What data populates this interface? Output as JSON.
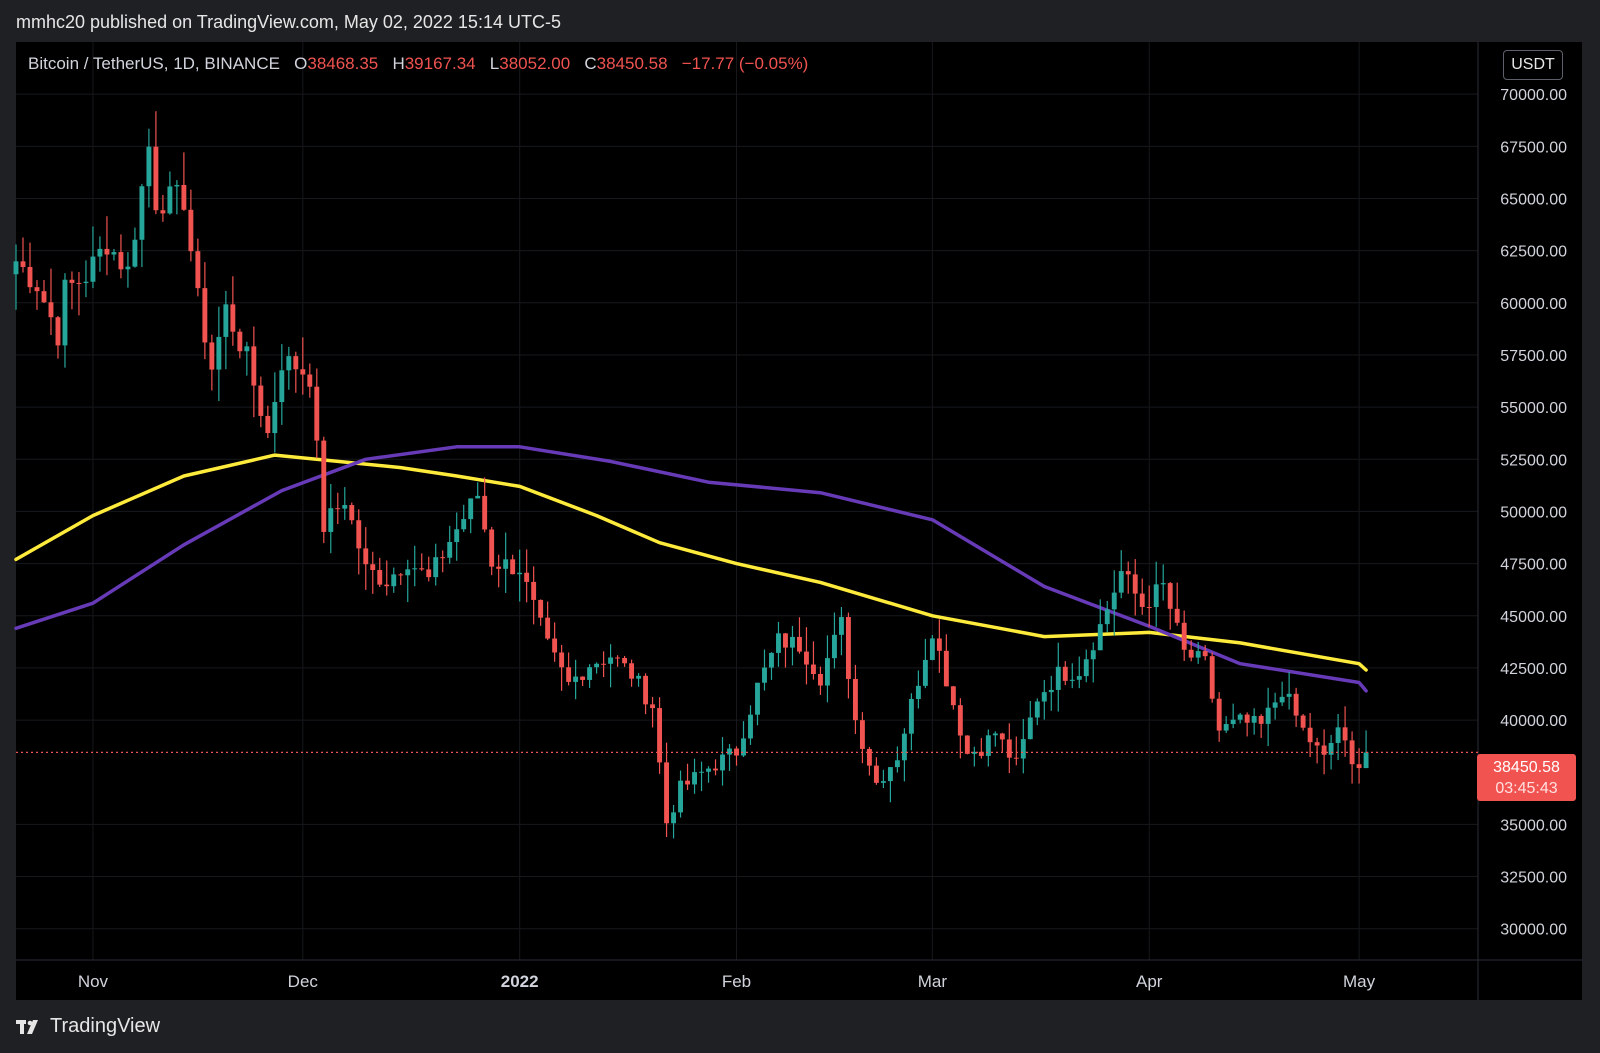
{
  "header": {
    "published_text": "mmhc20 published on TradingView.com, May 02, 2022 15:14 UTC-5"
  },
  "legend": {
    "symbol": "Bitcoin / TetherUS, 1D, BINANCE",
    "open_label": "O",
    "open": "38468.35",
    "high_label": "H",
    "high": "39167.34",
    "low_label": "L",
    "low": "38052.00",
    "close_label": "C",
    "close": "38450.58",
    "change": "−17.77 (−0.05%)"
  },
  "price_axis": {
    "currency": "USDT",
    "last_price": "38450.58",
    "countdown": "03:45:43",
    "ticks": [
      "70000.00",
      "67500.00",
      "65000.00",
      "62500.00",
      "60000.00",
      "57500.00",
      "55000.00",
      "52500.00",
      "50000.00",
      "47500.00",
      "45000.00",
      "42500.00",
      "40000.00",
      "35000.00",
      "32500.00",
      "30000.00"
    ]
  },
  "footer": {
    "brand": "TradingView"
  },
  "colors": {
    "up": "#26a69a",
    "down": "#f05350",
    "ma_yellow": "#ffeb3b",
    "ma_purple": "#673ab7",
    "background": "#000000"
  },
  "chart_data": {
    "type": "candlestick",
    "title": "Bitcoin / TetherUS, 1D, BINANCE",
    "x_ticks": [
      {
        "label": "Nov",
        "date": "2021-11-01"
      },
      {
        "label": "Dec",
        "date": "2021-12-01"
      },
      {
        "label": "2022",
        "date": "2022-01-01"
      },
      {
        "label": "Feb",
        "date": "2022-02-01"
      },
      {
        "label": "Mar",
        "date": "2022-03-01"
      },
      {
        "label": "Apr",
        "date": "2022-04-01"
      },
      {
        "label": "May",
        "date": "2022-05-01"
      }
    ],
    "x_range": [
      "2021-10-21",
      "2022-05-18"
    ],
    "ylim": [
      28500,
      72500
    ],
    "last_price": 38450.58,
    "close_series": [
      {
        "date": "2021-10-21",
        "close": 62000
      },
      {
        "date": "2021-10-24",
        "close": 60900
      },
      {
        "date": "2021-10-27",
        "close": 58500
      },
      {
        "date": "2021-10-28",
        "close": 60600
      },
      {
        "date": "2021-10-31",
        "close": 61300
      },
      {
        "date": "2021-11-03",
        "close": 62900
      },
      {
        "date": "2021-11-06",
        "close": 61500
      },
      {
        "date": "2021-11-09",
        "close": 67500
      },
      {
        "date": "2021-11-10",
        "close": 64900
      },
      {
        "date": "2021-11-14",
        "close": 65000
      },
      {
        "date": "2021-11-16",
        "close": 60100
      },
      {
        "date": "2021-11-18",
        "close": 56900
      },
      {
        "date": "2021-11-20",
        "close": 59700
      },
      {
        "date": "2021-11-23",
        "close": 57300
      },
      {
        "date": "2021-11-26",
        "close": 53700
      },
      {
        "date": "2021-11-28",
        "close": 57200
      },
      {
        "date": "2021-11-30",
        "close": 57000
      },
      {
        "date": "2021-12-02",
        "close": 56500
      },
      {
        "date": "2021-12-04",
        "close": 49300
      },
      {
        "date": "2021-12-07",
        "close": 50600
      },
      {
        "date": "2021-12-10",
        "close": 47200
      },
      {
        "date": "2021-12-13",
        "close": 46700
      },
      {
        "date": "2021-12-16",
        "close": 47700
      },
      {
        "date": "2021-12-19",
        "close": 46700
      },
      {
        "date": "2021-12-22",
        "close": 48600
      },
      {
        "date": "2021-12-26",
        "close": 50800
      },
      {
        "date": "2021-12-28",
        "close": 47600
      },
      {
        "date": "2022-01-01",
        "close": 47300
      },
      {
        "date": "2022-01-05",
        "close": 43500
      },
      {
        "date": "2022-01-08",
        "close": 41700
      },
      {
        "date": "2022-01-11",
        "close": 42700
      },
      {
        "date": "2022-01-14",
        "close": 43100
      },
      {
        "date": "2022-01-17",
        "close": 42200
      },
      {
        "date": "2022-01-20",
        "close": 40700
      },
      {
        "date": "2022-01-22",
        "close": 35100
      },
      {
        "date": "2022-01-24",
        "close": 36700
      },
      {
        "date": "2022-01-28",
        "close": 37700
      },
      {
        "date": "2022-02-01",
        "close": 38500
      },
      {
        "date": "2022-02-04",
        "close": 41600
      },
      {
        "date": "2022-02-07",
        "close": 43800
      },
      {
        "date": "2022-02-10",
        "close": 43600
      },
      {
        "date": "2022-02-13",
        "close": 42100
      },
      {
        "date": "2022-02-16",
        "close": 44600
      },
      {
        "date": "2022-02-18",
        "close": 40000
      },
      {
        "date": "2022-02-21",
        "close": 37000
      },
      {
        "date": "2022-02-24",
        "close": 38300
      },
      {
        "date": "2022-02-28",
        "close": 43200
      },
      {
        "date": "2022-03-01",
        "close": 44400
      },
      {
        "date": "2022-03-03",
        "close": 42000
      },
      {
        "date": "2022-03-06",
        "close": 38400
      },
      {
        "date": "2022-03-08",
        "close": 38700
      },
      {
        "date": "2022-03-10",
        "close": 39400
      },
      {
        "date": "2022-03-13",
        "close": 37800
      },
      {
        "date": "2022-03-16",
        "close": 41100
      },
      {
        "date": "2022-03-19",
        "close": 42200
      },
      {
        "date": "2022-03-22",
        "close": 42400
      },
      {
        "date": "2022-03-25",
        "close": 44500
      },
      {
        "date": "2022-03-28",
        "close": 47100
      },
      {
        "date": "2022-03-31",
        "close": 45500
      },
      {
        "date": "2022-04-03",
        "close": 46400
      },
      {
        "date": "2022-04-06",
        "close": 43200
      },
      {
        "date": "2022-04-09",
        "close": 42700
      },
      {
        "date": "2022-04-11",
        "close": 39500
      },
      {
        "date": "2022-04-14",
        "close": 39900
      },
      {
        "date": "2022-04-17",
        "close": 39700
      },
      {
        "date": "2022-04-20",
        "close": 41500
      },
      {
        "date": "2022-04-23",
        "close": 39500
      },
      {
        "date": "2022-04-26",
        "close": 38100
      },
      {
        "date": "2022-04-28",
        "close": 39700
      },
      {
        "date": "2022-04-30",
        "close": 37700
      },
      {
        "date": "2022-05-02",
        "close": 38450
      }
    ],
    "series": [
      {
        "color": "#ffeb3b",
        "points": [
          {
            "date": "2021-10-21",
            "value": 47700
          },
          {
            "date": "2021-11-01",
            "value": 49800
          },
          {
            "date": "2021-11-14",
            "value": 51700
          },
          {
            "date": "2021-11-27",
            "value": 52700
          },
          {
            "date": "2021-12-15",
            "value": 52100
          },
          {
            "date": "2021-12-23",
            "value": 51700
          },
          {
            "date": "2022-01-01",
            "value": 51200
          },
          {
            "date": "2022-01-12",
            "value": 49800
          },
          {
            "date": "2022-01-21",
            "value": 48500
          },
          {
            "date": "2022-02-01",
            "value": 47500
          },
          {
            "date": "2022-02-13",
            "value": 46600
          },
          {
            "date": "2022-03-01",
            "value": 45000
          },
          {
            "date": "2022-03-17",
            "value": 44000
          },
          {
            "date": "2022-04-01",
            "value": 44200
          },
          {
            "date": "2022-04-14",
            "value": 43700
          },
          {
            "date": "2022-05-01",
            "value": 42700
          },
          {
            "date": "2022-05-02",
            "value": 42400
          }
        ]
      },
      {
        "color": "#673ab7",
        "points": [
          {
            "date": "2021-10-21",
            "value": 44400
          },
          {
            "date": "2021-11-01",
            "value": 45600
          },
          {
            "date": "2021-11-14",
            "value": 48400
          },
          {
            "date": "2021-11-28",
            "value": 51000
          },
          {
            "date": "2021-12-10",
            "value": 52500
          },
          {
            "date": "2021-12-23",
            "value": 53100
          },
          {
            "date": "2022-01-01",
            "value": 53100
          },
          {
            "date": "2022-01-14",
            "value": 52400
          },
          {
            "date": "2022-01-28",
            "value": 51400
          },
          {
            "date": "2022-02-13",
            "value": 50900
          },
          {
            "date": "2022-03-01",
            "value": 49600
          },
          {
            "date": "2022-03-17",
            "value": 46400
          },
          {
            "date": "2022-04-01",
            "value": 44500
          },
          {
            "date": "2022-04-14",
            "value": 42700
          },
          {
            "date": "2022-05-01",
            "value": 41800
          },
          {
            "date": "2022-05-02",
            "value": 41400
          }
        ]
      }
    ]
  }
}
